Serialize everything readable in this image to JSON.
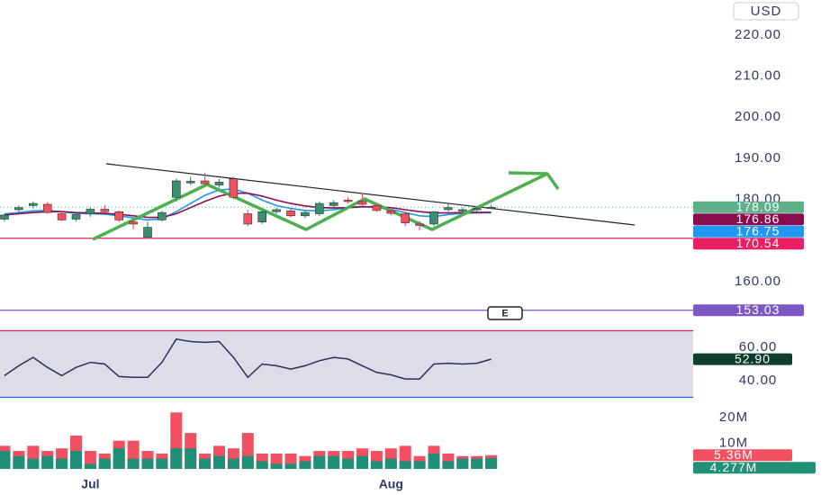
{
  "chart_data": {
    "type": "candlestick",
    "currency": "USD",
    "earnings_marker": "E",
    "categories": [
      null,
      null,
      null,
      null,
      null,
      null,
      "Jul",
      null,
      null,
      null,
      null,
      null,
      null,
      null,
      null,
      null,
      null,
      null,
      null,
      null,
      null,
      null,
      null,
      null,
      null,
      null,
      null,
      "Aug",
      null,
      null,
      null,
      null,
      null,
      null,
      null
    ],
    "open": [
      175.2,
      177.5,
      178.5,
      178.8,
      176.5,
      175.2,
      176.5,
      177.6,
      177.0,
      174.5,
      170.8,
      175.0,
      180.5,
      184.0,
      184.5,
      183.5,
      185.0,
      176.5,
      174.5,
      177.0,
      177.2,
      176.0,
      176.5,
      178.5,
      179.8,
      179.5,
      178.5,
      177.2,
      176.5,
      174.0,
      174.0,
      177.5,
      177.5,
      177.5,
      178.0
    ],
    "high": [
      176.5,
      178.5,
      179.5,
      179.3,
      177.0,
      176.5,
      178.0,
      178.6,
      177.3,
      175.0,
      174.5,
      177.2,
      185.0,
      185.5,
      186.5,
      185.0,
      185.5,
      177.5,
      177.5,
      178.0,
      177.8,
      177.5,
      179.5,
      179.8,
      180.5,
      181.5,
      179.0,
      178.0,
      177.0,
      174.7,
      177.2,
      179.0,
      178.0,
      178.3,
      178.7
    ],
    "low": [
      174.6,
      176.8,
      177.8,
      176.5,
      174.8,
      174.6,
      175.8,
      176.8,
      174.5,
      172.8,
      170.5,
      174.6,
      179.5,
      183.5,
      183.0,
      182.8,
      180.0,
      173.5,
      174.0,
      176.5,
      175.6,
      175.5,
      176.0,
      178.0,
      179.0,
      178.5,
      177.0,
      176.2,
      173.5,
      172.5,
      173.5,
      177.0,
      176.8,
      177.0,
      177.6
    ],
    "close": [
      176.2,
      178.0,
      179.0,
      176.8,
      175.0,
      176.3,
      177.6,
      177.0,
      175.0,
      174.0,
      173.2,
      176.8,
      184.5,
      184.4,
      183.8,
      184.2,
      180.5,
      174.0,
      177.0,
      177.5,
      176.0,
      176.8,
      179.0,
      179.2,
      179.5,
      178.8,
      177.3,
      176.6,
      174.3,
      173.7,
      177.0,
      178.0,
      177.5,
      177.8,
      178.09
    ],
    "up_color": "#3a8f6e",
    "down_color": "#f05060",
    "last_color": "#5fb08a",
    "ylim": [
      151,
      228.5
    ],
    "yticks": [
      {
        "value": 160,
        "label": "160.00"
      },
      {
        "value": 180,
        "label": "180.00"
      },
      {
        "value": 190,
        "label": "190.00"
      },
      {
        "value": 200,
        "label": "200.00"
      },
      {
        "value": 210,
        "label": "210.00"
      },
      {
        "value": 220,
        "label": "220.00"
      }
    ],
    "moving_averages": [
      {
        "color": "#2196f3",
        "values": [
          176.5,
          176.8,
          177.2,
          177.3,
          177.0,
          176.6,
          176.5,
          176.4,
          176.0,
          175.5,
          175.0,
          175.3,
          177.0,
          179.0,
          181.0,
          182.3,
          182.5,
          181.5,
          179.8,
          178.5,
          177.8,
          177.3,
          177.2,
          177.5,
          178.0,
          178.3,
          178.0,
          177.6,
          176.8,
          176.0,
          175.8,
          176.3,
          176.6,
          176.7,
          176.75
        ]
      },
      {
        "color": "#880e4f",
        "values": [
          176.2,
          176.5,
          176.8,
          177.0,
          177.0,
          176.8,
          176.7,
          176.6,
          176.4,
          176.0,
          175.6,
          175.6,
          176.5,
          178.0,
          179.5,
          180.8,
          181.5,
          181.5,
          180.8,
          179.8,
          179.0,
          178.4,
          178.0,
          177.9,
          178.0,
          178.2,
          178.2,
          178.0,
          177.5,
          177.0,
          176.7,
          176.7,
          176.8,
          176.85,
          176.86
        ]
      }
    ],
    "levels": [
      {
        "value": 170.54,
        "color": "#e91e63"
      },
      {
        "value": 153.03,
        "color": "#7e57c2"
      }
    ],
    "rsi": {
      "color": "#2a2e5c",
      "values": [
        43,
        49,
        54,
        48,
        43,
        48,
        51,
        50,
        42.5,
        42,
        42,
        51,
        65,
        63.5,
        63,
        63.5,
        54,
        42,
        50,
        49,
        47,
        49,
        52,
        54,
        53,
        49,
        45,
        43.5,
        41,
        41,
        50,
        50.5,
        50,
        50.5,
        52.9
      ],
      "value_labels": [
        null,
        null,
        null,
        null,
        null,
        null,
        null,
        null,
        null,
        null,
        null,
        null,
        null,
        null,
        null,
        null,
        null,
        null,
        null,
        null,
        null,
        null,
        null,
        null,
        null,
        null,
        null,
        null,
        null,
        null,
        null,
        null,
        null,
        null,
        "52.90"
      ],
      "ylim": [
        30,
        70
      ],
      "yticks": [
        {
          "value": 40,
          "label": "40.00"
        },
        {
          "value": 60,
          "label": "60.00"
        }
      ],
      "badge_color": "#0f3d2f"
    },
    "volume": {
      "ylim": [
        0,
        22
      ],
      "yticks": [
        {
          "value": 10,
          "label": "10M"
        },
        {
          "value": 20,
          "label": "20M"
        }
      ],
      "series": [
        {
          "color": "#f05060",
          "values": [
            9,
            7,
            9,
            7,
            8,
            13,
            7,
            6,
            11,
            11,
            7,
            6,
            22,
            14,
            6,
            9,
            8,
            14,
            6,
            6,
            6,
            5,
            7,
            7,
            7,
            8,
            7,
            8,
            9,
            5,
            9,
            6,
            5,
            5,
            5.36
          ],
          "value_labels": [
            null,
            null,
            null,
            null,
            null,
            null,
            null,
            null,
            null,
            null,
            null,
            null,
            null,
            null,
            null,
            null,
            null,
            null,
            null,
            null,
            null,
            null,
            null,
            null,
            null,
            null,
            null,
            null,
            null,
            null,
            null,
            null,
            null,
            null,
            "5.36M"
          ]
        },
        {
          "color": "#1f8f77",
          "values": [
            7,
            5,
            4,
            5,
            4,
            7,
            2,
            4,
            8,
            4,
            4,
            4,
            8,
            8,
            4,
            5,
            4,
            5,
            3,
            2,
            2,
            3,
            5,
            5,
            4,
            5,
            3,
            4,
            3,
            3,
            6,
            3,
            4,
            4,
            4.277
          ],
          "value_labels": [
            null,
            null,
            null,
            null,
            null,
            null,
            null,
            null,
            null,
            null,
            null,
            null,
            null,
            null,
            null,
            null,
            null,
            null,
            null,
            null,
            null,
            null,
            null,
            null,
            null,
            null,
            null,
            null,
            null,
            null,
            null,
            null,
            null,
            null,
            "4.277M"
          ]
        }
      ]
    }
  }
}
